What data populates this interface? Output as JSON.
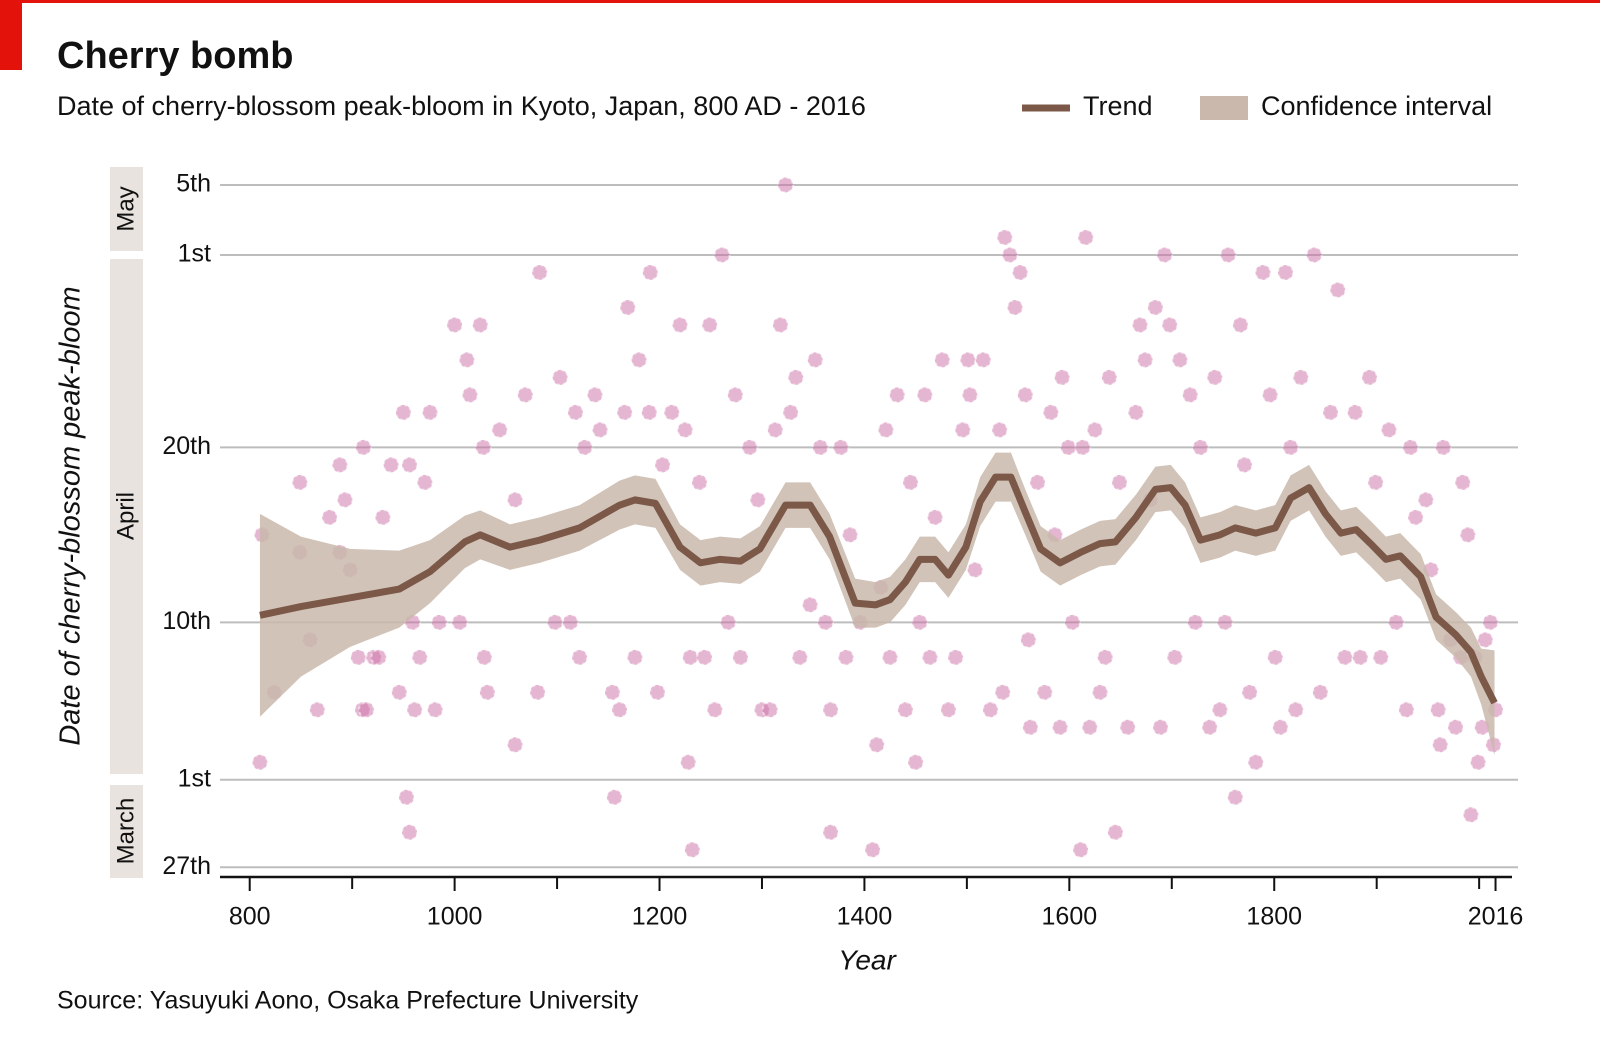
{
  "chart_data": {
    "type": "scatter",
    "title": "Cherry bomb",
    "subtitle": "Date of cherry-blossom peak-bloom in Kyoto, Japan, 800 AD - 2016",
    "x_label": "Year",
    "y_label": "Date of cherry-blossom peak-bloom",
    "source": "Source: Yasuyuki Aono, Osaka Prefecture University",
    "month_labels": [
      "May",
      "April",
      "March"
    ],
    "xlim": [
      771,
      2035
    ],
    "xticks": [
      800,
      1000,
      1200,
      1400,
      1600,
      1800,
      2016
    ],
    "xticks_minor": [
      900,
      1100,
      1300,
      1500,
      1700,
      1900,
      2000
    ],
    "ylim": [
      85.5,
      126
    ],
    "yticks": [
      {
        "value": 86,
        "label": "27th"
      },
      {
        "value": 91,
        "label": "1st"
      },
      {
        "value": 100,
        "label": "10th"
      },
      {
        "value": 110,
        "label": "20th"
      },
      {
        "value": 121,
        "label": "1st"
      },
      {
        "value": 125,
        "label": "5th"
      }
    ],
    "grid": true,
    "legend": "top-right",
    "points": {
      "color": "#cc6ea6",
      "x": [
        812,
        810,
        824,
        849,
        849,
        859,
        866,
        878,
        888,
        888,
        893,
        898,
        906,
        910,
        911,
        914,
        921,
        926,
        930,
        938,
        946,
        950,
        953,
        956,
        956,
        959,
        961,
        966,
        971,
        976,
        981,
        985,
        1000,
        1005,
        1012,
        1015,
        1025,
        1028,
        1029,
        1032,
        1044,
        1059,
        1059,
        1069,
        1081,
        1083,
        1098,
        1103,
        1113,
        1118,
        1122,
        1127,
        1137,
        1142,
        1154,
        1156,
        1161,
        1166,
        1169,
        1176,
        1180,
        1190,
        1191,
        1198,
        1203,
        1212,
        1220,
        1225,
        1228,
        1230,
        1232,
        1239,
        1244,
        1249,
        1254,
        1261,
        1267,
        1274,
        1279,
        1288,
        1296,
        1300,
        1308,
        1313,
        1318,
        1323,
        1328,
        1333,
        1337,
        1347,
        1352,
        1357,
        1362,
        1367,
        1367,
        1377,
        1382,
        1386,
        1396,
        1408,
        1412,
        1416,
        1421,
        1425,
        1432,
        1440,
        1445,
        1450,
        1454,
        1459,
        1464,
        1469,
        1476,
        1482,
        1489,
        1496,
        1501,
        1503,
        1508,
        1516,
        1523,
        1532,
        1535,
        1537,
        1542,
        1547,
        1552,
        1557,
        1560,
        1562,
        1569,
        1576,
        1582,
        1586,
        1591,
        1593,
        1599,
        1603,
        1611,
        1613,
        1616,
        1620,
        1625,
        1630,
        1635,
        1639,
        1645,
        1649,
        1657,
        1665,
        1669,
        1674,
        1679,
        1684,
        1689,
        1693,
        1698,
        1703,
        1708,
        1718,
        1723,
        1728,
        1737,
        1742,
        1747,
        1752,
        1755,
        1762,
        1767,
        1771,
        1776,
        1782,
        1789,
        1796,
        1801,
        1806,
        1811,
        1816,
        1821,
        1826,
        1839,
        1845,
        1855,
        1862,
        1869,
        1879,
        1884,
        1893,
        1899,
        1904,
        1912,
        1919,
        1929,
        1933,
        1938,
        1948,
        1953,
        1960,
        1962,
        1965,
        1972,
        1977,
        1982,
        1984,
        1989,
        1992,
        1996,
        1999,
        2003,
        2006,
        2011,
        2014,
        2016
      ],
      "y": [
        105,
        92,
        96,
        108,
        104,
        99,
        95,
        106,
        104,
        109,
        107,
        103,
        98,
        95,
        110,
        95,
        98,
        98,
        106,
        109,
        96,
        112,
        90,
        109,
        88,
        100,
        95,
        98,
        108,
        112,
        95,
        100,
        117,
        100,
        115,
        113,
        117,
        110,
        98,
        96,
        111,
        93,
        107,
        113,
        96,
        120,
        100,
        114,
        100,
        112,
        98,
        110,
        113,
        111,
        96,
        90,
        95,
        112,
        118,
        98,
        115,
        112,
        120,
        96,
        109,
        112,
        117,
        111,
        92,
        98,
        87,
        108,
        98,
        117,
        95,
        121,
        100,
        113,
        98,
        110,
        107,
        95,
        95,
        111,
        117,
        125,
        112,
        114,
        98,
        101,
        115,
        110,
        100,
        95,
        88,
        110,
        98,
        105,
        100,
        87,
        93,
        102,
        111,
        98,
        113,
        95,
        108,
        92,
        100,
        113,
        98,
        106,
        115,
        95,
        98,
        111,
        115,
        113,
        103,
        115,
        95,
        111,
        96,
        122,
        121,
        118,
        120,
        113,
        99,
        94,
        108,
        96,
        112,
        105,
        94,
        114,
        110,
        100,
        87,
        110,
        122,
        94,
        111,
        96,
        98,
        114,
        88,
        108,
        94,
        112,
        117,
        115,
        107,
        118,
        94,
        121,
        117,
        98,
        115,
        113,
        100,
        110,
        94,
        114,
        95,
        100,
        121,
        90,
        117,
        109,
        96,
        92,
        120,
        113,
        98,
        94,
        120,
        110,
        95,
        114,
        121,
        96,
        112,
        119,
        98,
        112,
        98,
        114,
        108,
        98,
        111,
        100,
        95,
        110,
        106,
        107,
        103,
        95,
        93,
        110,
        99,
        94,
        98,
        108,
        105,
        89,
        98,
        92,
        94,
        99,
        100,
        93,
        95
      ]
    },
    "trend": {
      "name": "Trend",
      "ci_name": "Confidence interval",
      "color": "#7b5848",
      "ci_color": "#c9b8ab",
      "x": [
        810,
        850,
        898,
        946,
        976,
        1010,
        1025,
        1054,
        1083,
        1122,
        1161,
        1176,
        1196,
        1220,
        1240,
        1259,
        1279,
        1298,
        1323,
        1347,
        1366,
        1391,
        1411,
        1425,
        1440,
        1454,
        1469,
        1482,
        1499,
        1513,
        1528,
        1543,
        1557,
        1572,
        1591,
        1611,
        1630,
        1645,
        1665,
        1684,
        1699,
        1713,
        1728,
        1747,
        1762,
        1782,
        1801,
        1816,
        1834,
        1850,
        1865,
        1880,
        1894,
        1909,
        1923,
        1943,
        1958,
        1977,
        1992,
        2002,
        2015
      ],
      "values": [
        100.4,
        100.9,
        101.4,
        101.9,
        102.9,
        104.6,
        105,
        104.3,
        104.7,
        105.4,
        106.7,
        107,
        106.8,
        104.3,
        103.4,
        103.6,
        103.5,
        104.2,
        106.7,
        106.7,
        104.9,
        101.1,
        101,
        101.3,
        102.3,
        103.6,
        103.6,
        102.7,
        104.3,
        106.9,
        108.3,
        108.3,
        106.3,
        104.2,
        103.4,
        104,
        104.5,
        104.6,
        106,
        107.6,
        107.7,
        106.7,
        104.7,
        105,
        105.4,
        105.1,
        105.4,
        107.1,
        107.7,
        106.2,
        105.1,
        105.3,
        104.5,
        103.6,
        103.8,
        102.6,
        100.3,
        99.3,
        98.3,
        96.9,
        95.4
      ],
      "ci_upper": [
        106.2,
        104.9,
        104.2,
        104.1,
        104.7,
        106.1,
        106.4,
        105.6,
        106,
        106.7,
        108.1,
        108.4,
        108.2,
        105.6,
        104.7,
        104.9,
        104.8,
        105.5,
        108,
        108,
        106.2,
        102.5,
        102.3,
        102.6,
        103.6,
        104.9,
        104.9,
        104,
        105.6,
        108.3,
        109.7,
        109.7,
        107.6,
        105.5,
        104.7,
        105.3,
        105.8,
        105.9,
        107.3,
        108.9,
        109,
        108,
        106,
        106.3,
        106.7,
        106.4,
        106.7,
        108.4,
        109,
        107.5,
        106.4,
        106.6,
        105.8,
        104.9,
        105.1,
        103.9,
        101.6,
        100.6,
        99.7,
        98.5,
        98.4
      ],
      "ci_lower": [
        94.6,
        96.9,
        98.6,
        99.7,
        101.1,
        103.1,
        103.6,
        103,
        103.4,
        104.1,
        105.3,
        105.6,
        105.4,
        103,
        102.1,
        102.3,
        102.2,
        102.9,
        105.4,
        105.4,
        103.6,
        99.7,
        99.7,
        100,
        101,
        102.3,
        102.3,
        101.4,
        103,
        105.5,
        106.9,
        106.9,
        105,
        102.9,
        102.1,
        102.7,
        103.2,
        103.3,
        104.7,
        106.3,
        106.4,
        105.4,
        103.4,
        103.7,
        104.1,
        103.8,
        104.1,
        105.8,
        106.4,
        104.9,
        103.8,
        104,
        103.2,
        102.3,
        102.5,
        101.3,
        99,
        98,
        96.9,
        95.3,
        92.4
      ]
    }
  }
}
